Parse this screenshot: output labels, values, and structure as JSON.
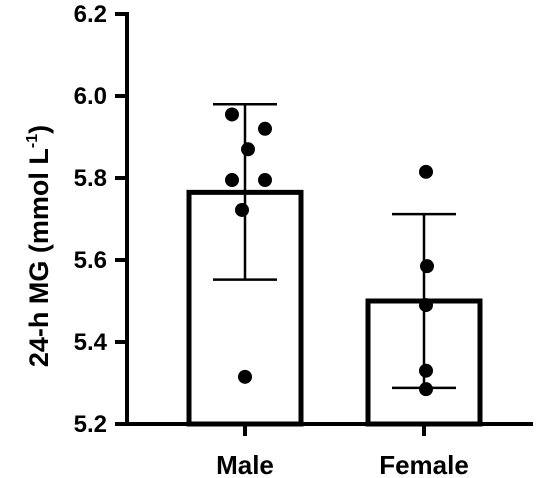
{
  "chart_data": {
    "type": "bar",
    "categories": [
      "Male",
      "Female"
    ],
    "values": [
      5.765,
      5.5
    ],
    "error": [
      {
        "low": 5.552,
        "high": 5.98
      },
      {
        "low": 5.288,
        "high": 5.712
      }
    ],
    "points": [
      [
        5.955,
        5.92,
        5.87,
        5.795,
        5.795,
        5.722,
        5.315
      ],
      [
        5.815,
        5.585,
        5.49,
        5.33,
        5.285
      ]
    ],
    "ylabel_main": "24-h MG (mmol L",
    "ylabel_sup": "-1",
    "ylabel_close": ")",
    "ylim": [
      5.2,
      6.2
    ],
    "yticks": [
      5.2,
      5.4,
      5.6,
      5.8,
      6.0,
      6.2
    ],
    "ytick_labels": [
      "5.2",
      "5.4",
      "5.6",
      "5.8",
      "6.0",
      "6.2"
    ],
    "grid": false,
    "colors": {
      "bar_fill": "#ffffff",
      "stroke": "#000000",
      "points": "#000000"
    }
  }
}
